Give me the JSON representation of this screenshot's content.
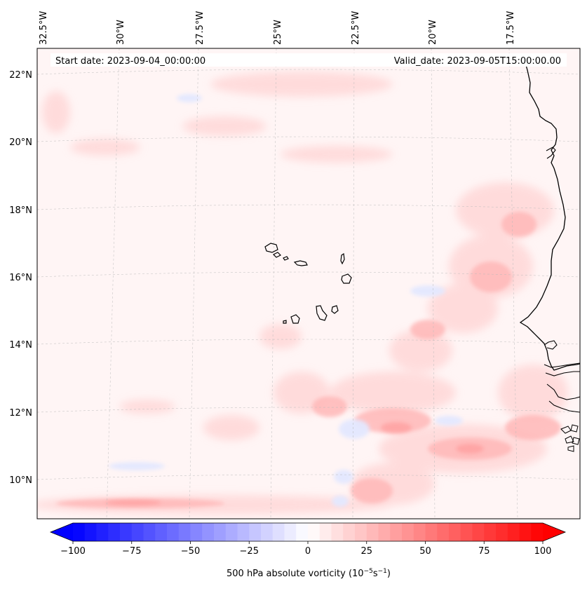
{
  "map": {
    "start_date": "Start date: 2023-09-04_00:00:00",
    "valid_date": "Valid_date: 2023-09-05T15:00:00.00",
    "lon_labels": [
      "32.5°W",
      "30°W",
      "27.5°W",
      "25°W",
      "22.5°W",
      "20°W",
      "17.5°W"
    ],
    "lat_labels": [
      "22°N",
      "20°N",
      "18°N",
      "16°N",
      "14°N",
      "12°N",
      "10°N"
    ]
  },
  "colorbar": {
    "label_main": "500 hPa absolute vorticity (10",
    "label_exp1": "−5",
    "label_s": "s",
    "label_exp2": "−1",
    "label_close": ")",
    "ticks": [
      "−100",
      "−75",
      "−50",
      "−25",
      "0",
      "25",
      "50",
      "75",
      "100"
    ],
    "tick_values": [
      -100,
      -75,
      -50,
      -25,
      0,
      25,
      50,
      75,
      100
    ],
    "min": -100,
    "max": 100,
    "colors": {
      "negative": "#0000ff",
      "zero": "#ffffff",
      "positive": "#ff0000"
    }
  }
}
